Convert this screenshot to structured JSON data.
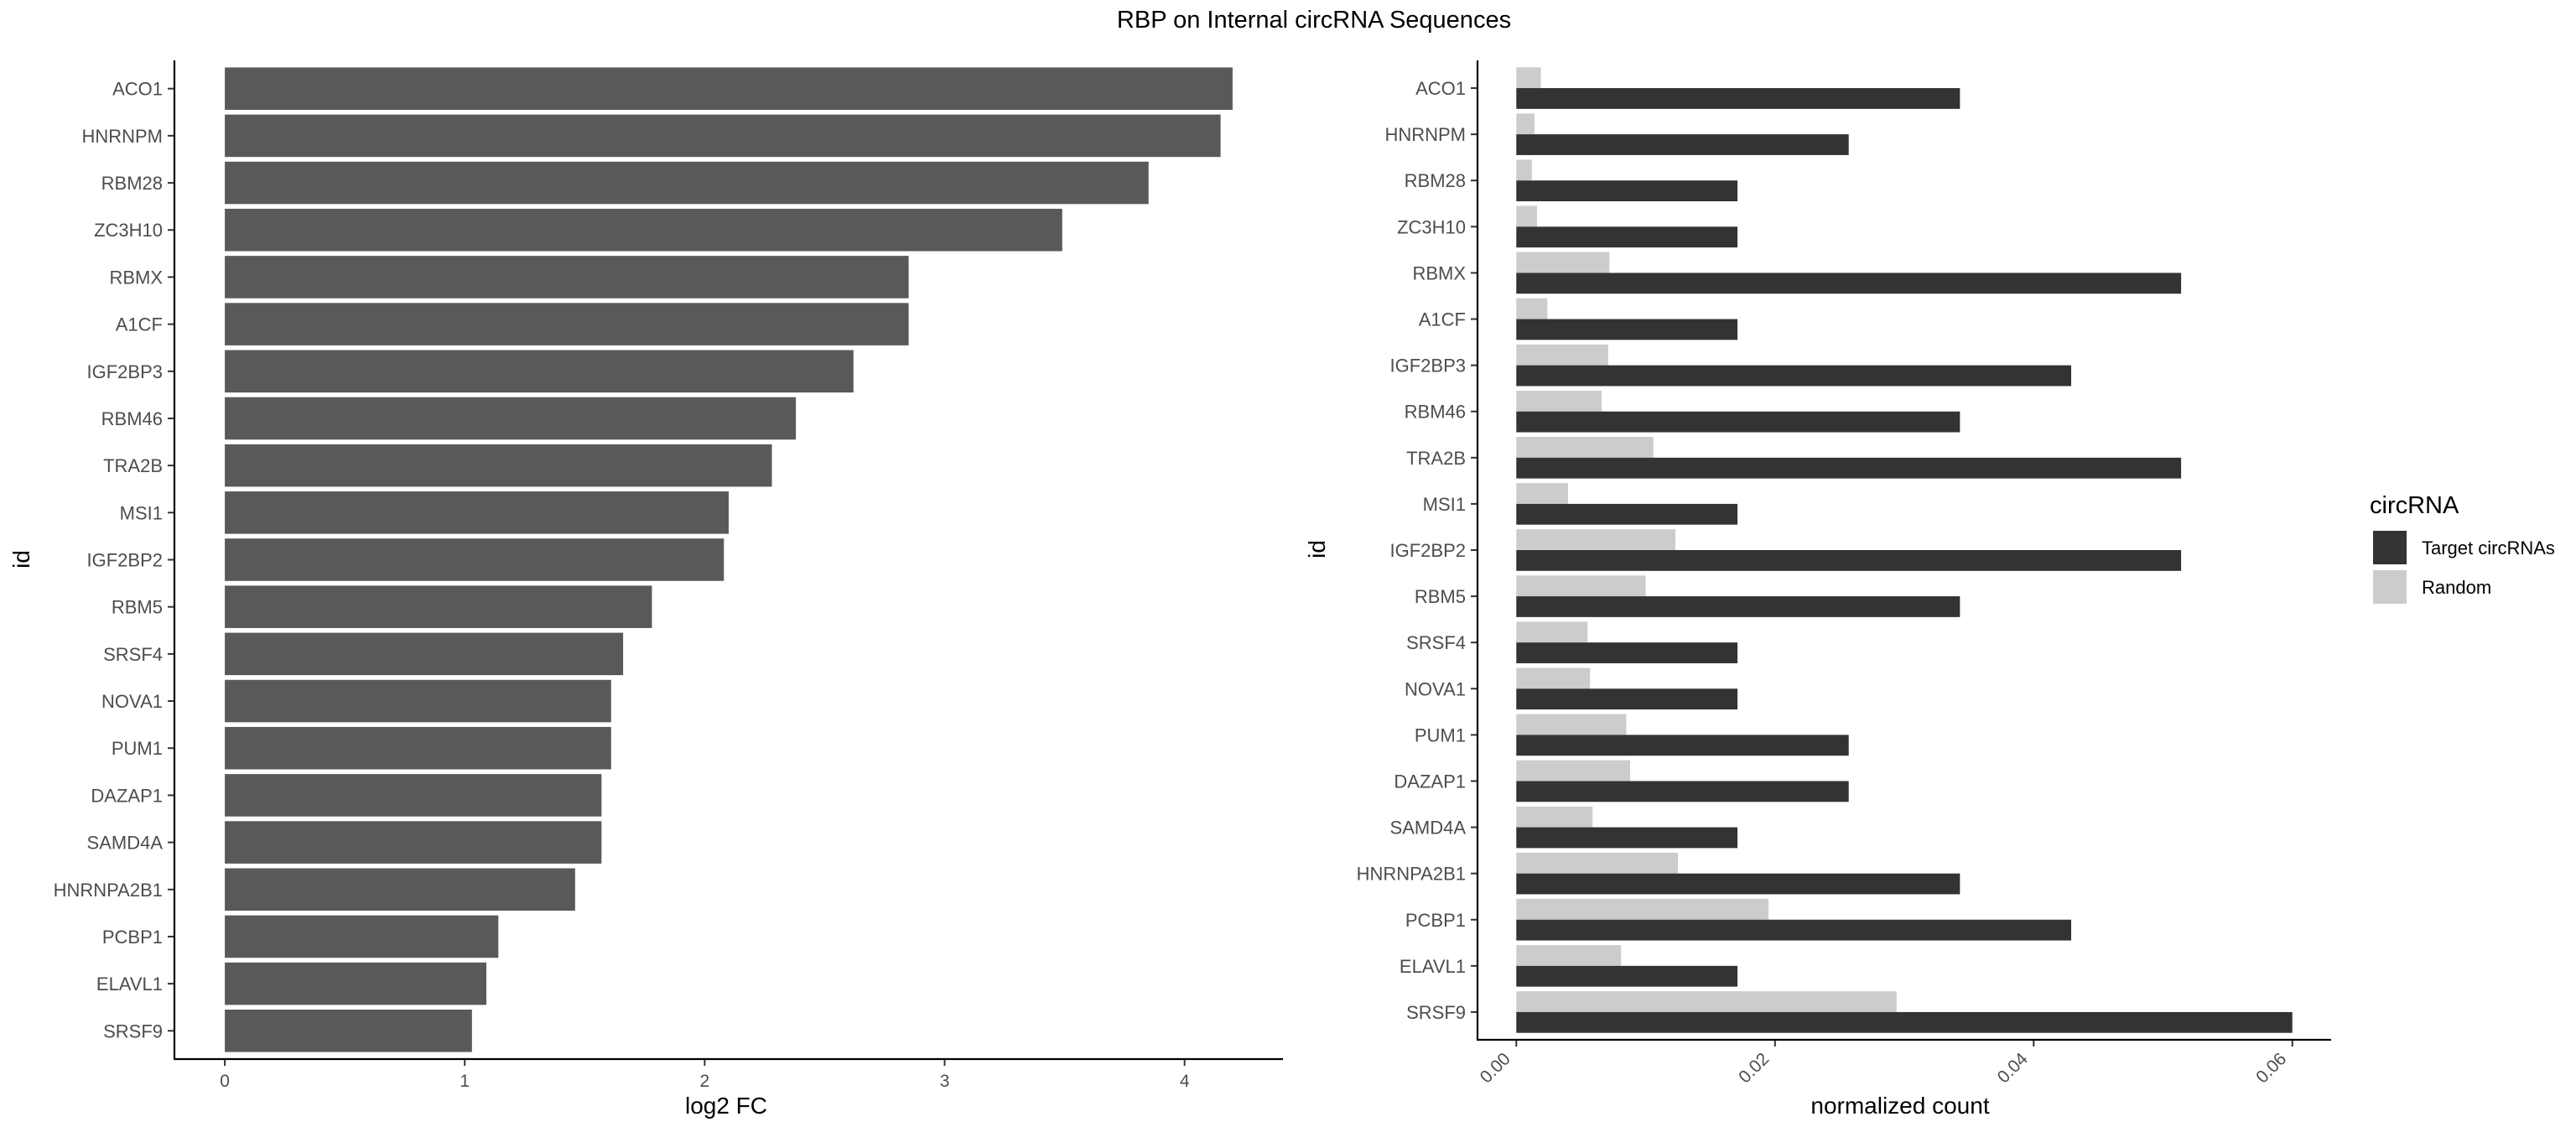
{
  "title": "RBP on Internal circRNA Sequences",
  "chart_data": [
    {
      "type": "bar",
      "orientation": "horizontal",
      "categories": [
        "ACO1",
        "HNRNPM",
        "RBM28",
        "ZC3H10",
        "RBMX",
        "A1CF",
        "IGF2BP3",
        "RBM46",
        "TRA2B",
        "MSI1",
        "IGF2BP2",
        "RBM5",
        "SRSF4",
        "NOVA1",
        "PUM1",
        "DAZAP1",
        "SAMD4A",
        "HNRNPA2B1",
        "PCBP1",
        "ELAVL1",
        "SRSF9"
      ],
      "values": [
        4.2,
        4.15,
        3.85,
        3.49,
        2.85,
        2.85,
        2.62,
        2.38,
        2.28,
        2.1,
        2.08,
        1.78,
        1.66,
        1.61,
        1.61,
        1.57,
        1.57,
        1.46,
        1.14,
        1.09,
        1.03
      ],
      "xlabel": "log2 FC",
      "ylabel": "id",
      "xlim": [
        -0.21,
        4.41
      ],
      "xticks": [
        "0",
        "1",
        "2",
        "3",
        "4"
      ],
      "bar_color": "#595959",
      "grid": false
    },
    {
      "type": "bar",
      "orientation": "horizontal",
      "grouped": true,
      "categories": [
        "ACO1",
        "HNRNPM",
        "RBM28",
        "ZC3H10",
        "RBMX",
        "A1CF",
        "IGF2BP3",
        "RBM46",
        "TRA2B",
        "MSI1",
        "IGF2BP2",
        "RBM5",
        "SRSF4",
        "NOVA1",
        "PUM1",
        "DAZAP1",
        "SAMD4A",
        "HNRNPA2B1",
        "PCBP1",
        "ELAVL1",
        "SRSF9"
      ],
      "series": [
        {
          "name": "Target circRNAs",
          "color": "#333333",
          "values": [
            0.0343,
            0.0257,
            0.0171,
            0.0171,
            0.0514,
            0.0171,
            0.0429,
            0.0343,
            0.0514,
            0.0171,
            0.0514,
            0.0343,
            0.0171,
            0.0171,
            0.0257,
            0.0257,
            0.0171,
            0.0343,
            0.0429,
            0.0171,
            0.06
          ]
        },
        {
          "name": "Random",
          "color": "#cccccc",
          "values": [
            0.0019,
            0.0014,
            0.0012,
            0.0016,
            0.0072,
            0.0024,
            0.0071,
            0.0066,
            0.0106,
            0.004,
            0.0123,
            0.01,
            0.0055,
            0.0057,
            0.0085,
            0.0088,
            0.0059,
            0.0125,
            0.0195,
            0.0081,
            0.0294
          ]
        }
      ],
      "xlabel": "normalized count",
      "ylabel": "id",
      "xlim": [
        -0.003,
        0.063
      ],
      "xticks": [
        "0.00",
        "0.02",
        "0.04",
        "0.06"
      ],
      "legend": {
        "title": "circRNA",
        "position": "right"
      },
      "grid": false
    }
  ]
}
